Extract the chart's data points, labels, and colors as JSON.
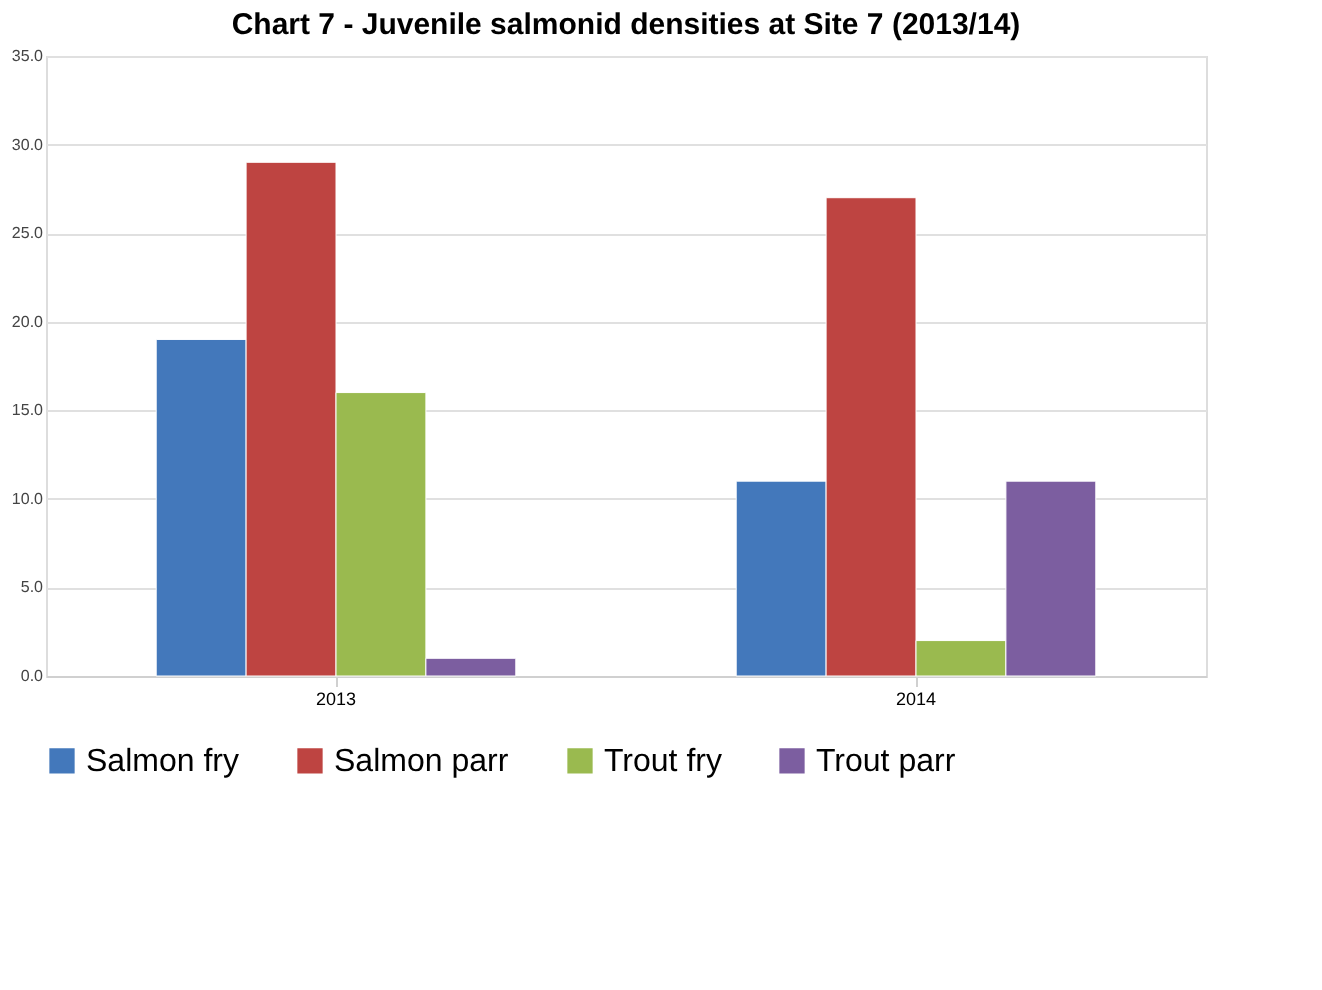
{
  "chart_data": {
    "type": "bar",
    "title": "Chart 7 - Juvenile salmonid densities at Site 7  (2013/14)",
    "categories": [
      "2013",
      "2014"
    ],
    "series": [
      {
        "name": "Salmon fry",
        "color": "#4378bb",
        "values": [
          19,
          11
        ]
      },
      {
        "name": "Salmon parr",
        "color": "#be4441",
        "values": [
          29,
          27
        ]
      },
      {
        "name": "Trout fry",
        "color": "#9aba4f",
        "values": [
          16,
          2
        ]
      },
      {
        "name": "Trout parr",
        "color": "#7c5ea0",
        "values": [
          1,
          11
        ]
      }
    ],
    "ylim": [
      0,
      35
    ],
    "yticks": [
      {
        "value": 0,
        "label": "0.0"
      },
      {
        "value": 5,
        "label": "5.0"
      },
      {
        "value": 10,
        "label": "10.0"
      },
      {
        "value": 15,
        "label": "15.0"
      },
      {
        "value": 20,
        "label": "20.0"
      },
      {
        "value": 25,
        "label": "25.0"
      },
      {
        "value": 30,
        "label": "30.0"
      },
      {
        "value": 35,
        "label": "35.0"
      }
    ],
    "grid": "y",
    "legend": "bottom"
  }
}
